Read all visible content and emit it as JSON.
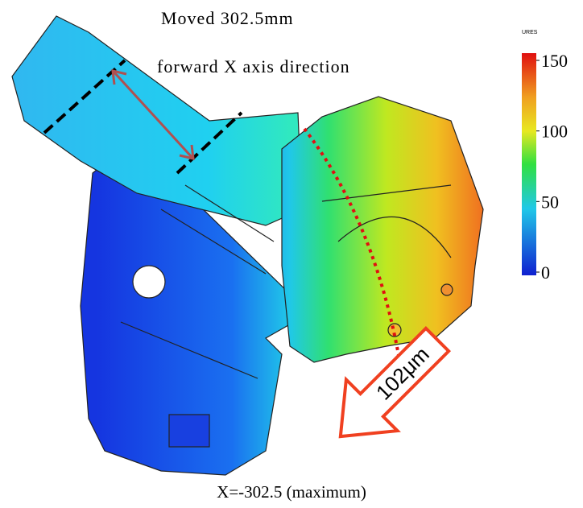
{
  "annotations": {
    "move_line1": "Moved 302.5mm",
    "move_line2": "forward X axis direction",
    "deformation": "102μm",
    "caption": "X=-302.5 (maximum)"
  },
  "colorbar": {
    "title": "URES",
    "lim": [
      0,
      150
    ],
    "ticks": [
      150,
      100,
      50,
      0
    ]
  }
}
